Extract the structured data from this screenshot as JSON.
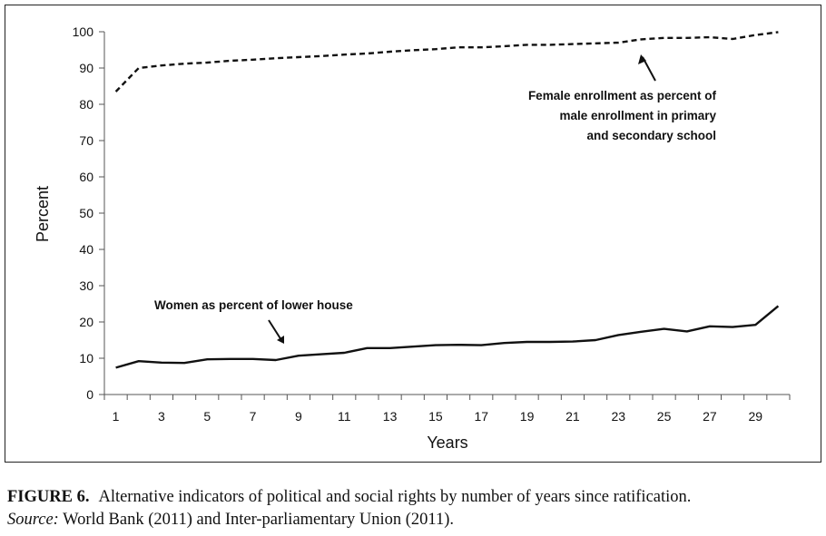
{
  "chart_data": {
    "type": "line",
    "xlabel": "Years",
    "ylabel": "Percent",
    "xlim": [
      1,
      30
    ],
    "ylim": [
      0,
      100
    ],
    "x_ticks": [
      1,
      3,
      5,
      7,
      9,
      11,
      13,
      15,
      17,
      19,
      21,
      23,
      25,
      27,
      29
    ],
    "y_ticks": [
      0,
      10,
      20,
      30,
      40,
      50,
      60,
      70,
      80,
      90,
      100
    ],
    "x": [
      1,
      2,
      3,
      4,
      5,
      6,
      7,
      8,
      9,
      10,
      11,
      12,
      13,
      14,
      15,
      16,
      17,
      18,
      19,
      20,
      21,
      22,
      23,
      24,
      25,
      26,
      27,
      28,
      29,
      30
    ],
    "series": [
      {
        "name": "Female enrollment as percent of male enrollment in primary and secondary school",
        "style": "dashed",
        "color": "#111111",
        "values": [
          83.5,
          90,
          90.7,
          91.2,
          91.5,
          92,
          92.3,
          92.7,
          93,
          93.3,
          93.7,
          94,
          94.5,
          94.9,
          95.2,
          95.7,
          95.7,
          96,
          96.4,
          96.4,
          96.6,
          96.8,
          97,
          97.9,
          98.3,
          98.3,
          98.5,
          98,
          99.1,
          99.9
        ]
      },
      {
        "name": "Women as percent of lower house",
        "style": "solid",
        "color": "#111111",
        "values": [
          7.4,
          9.2,
          8.8,
          8.7,
          9.7,
          9.8,
          9.8,
          9.5,
          10.7,
          11.1,
          11.5,
          12.8,
          12.8,
          13.2,
          13.6,
          13.7,
          13.6,
          14.2,
          14.5,
          14.5,
          14.6,
          15,
          16.4,
          17.3,
          18.1,
          17.4,
          18.8,
          18.6,
          19.2,
          24.4
        ]
      }
    ],
    "annotations": {
      "enrollment": [
        "Female enrollment as percent of",
        "male enrollment in primary",
        "and secondary school"
      ],
      "lower_house": [
        "Women as percent of lower house"
      ]
    }
  },
  "caption": {
    "figure_label": "FIGURE 6.",
    "figure_text": "Alternative indicators of political and social rights by number of years since ratification.",
    "source_label": "Source:",
    "source_text": "World Bank (2011) and Inter-parliamentary Union (2011)."
  }
}
